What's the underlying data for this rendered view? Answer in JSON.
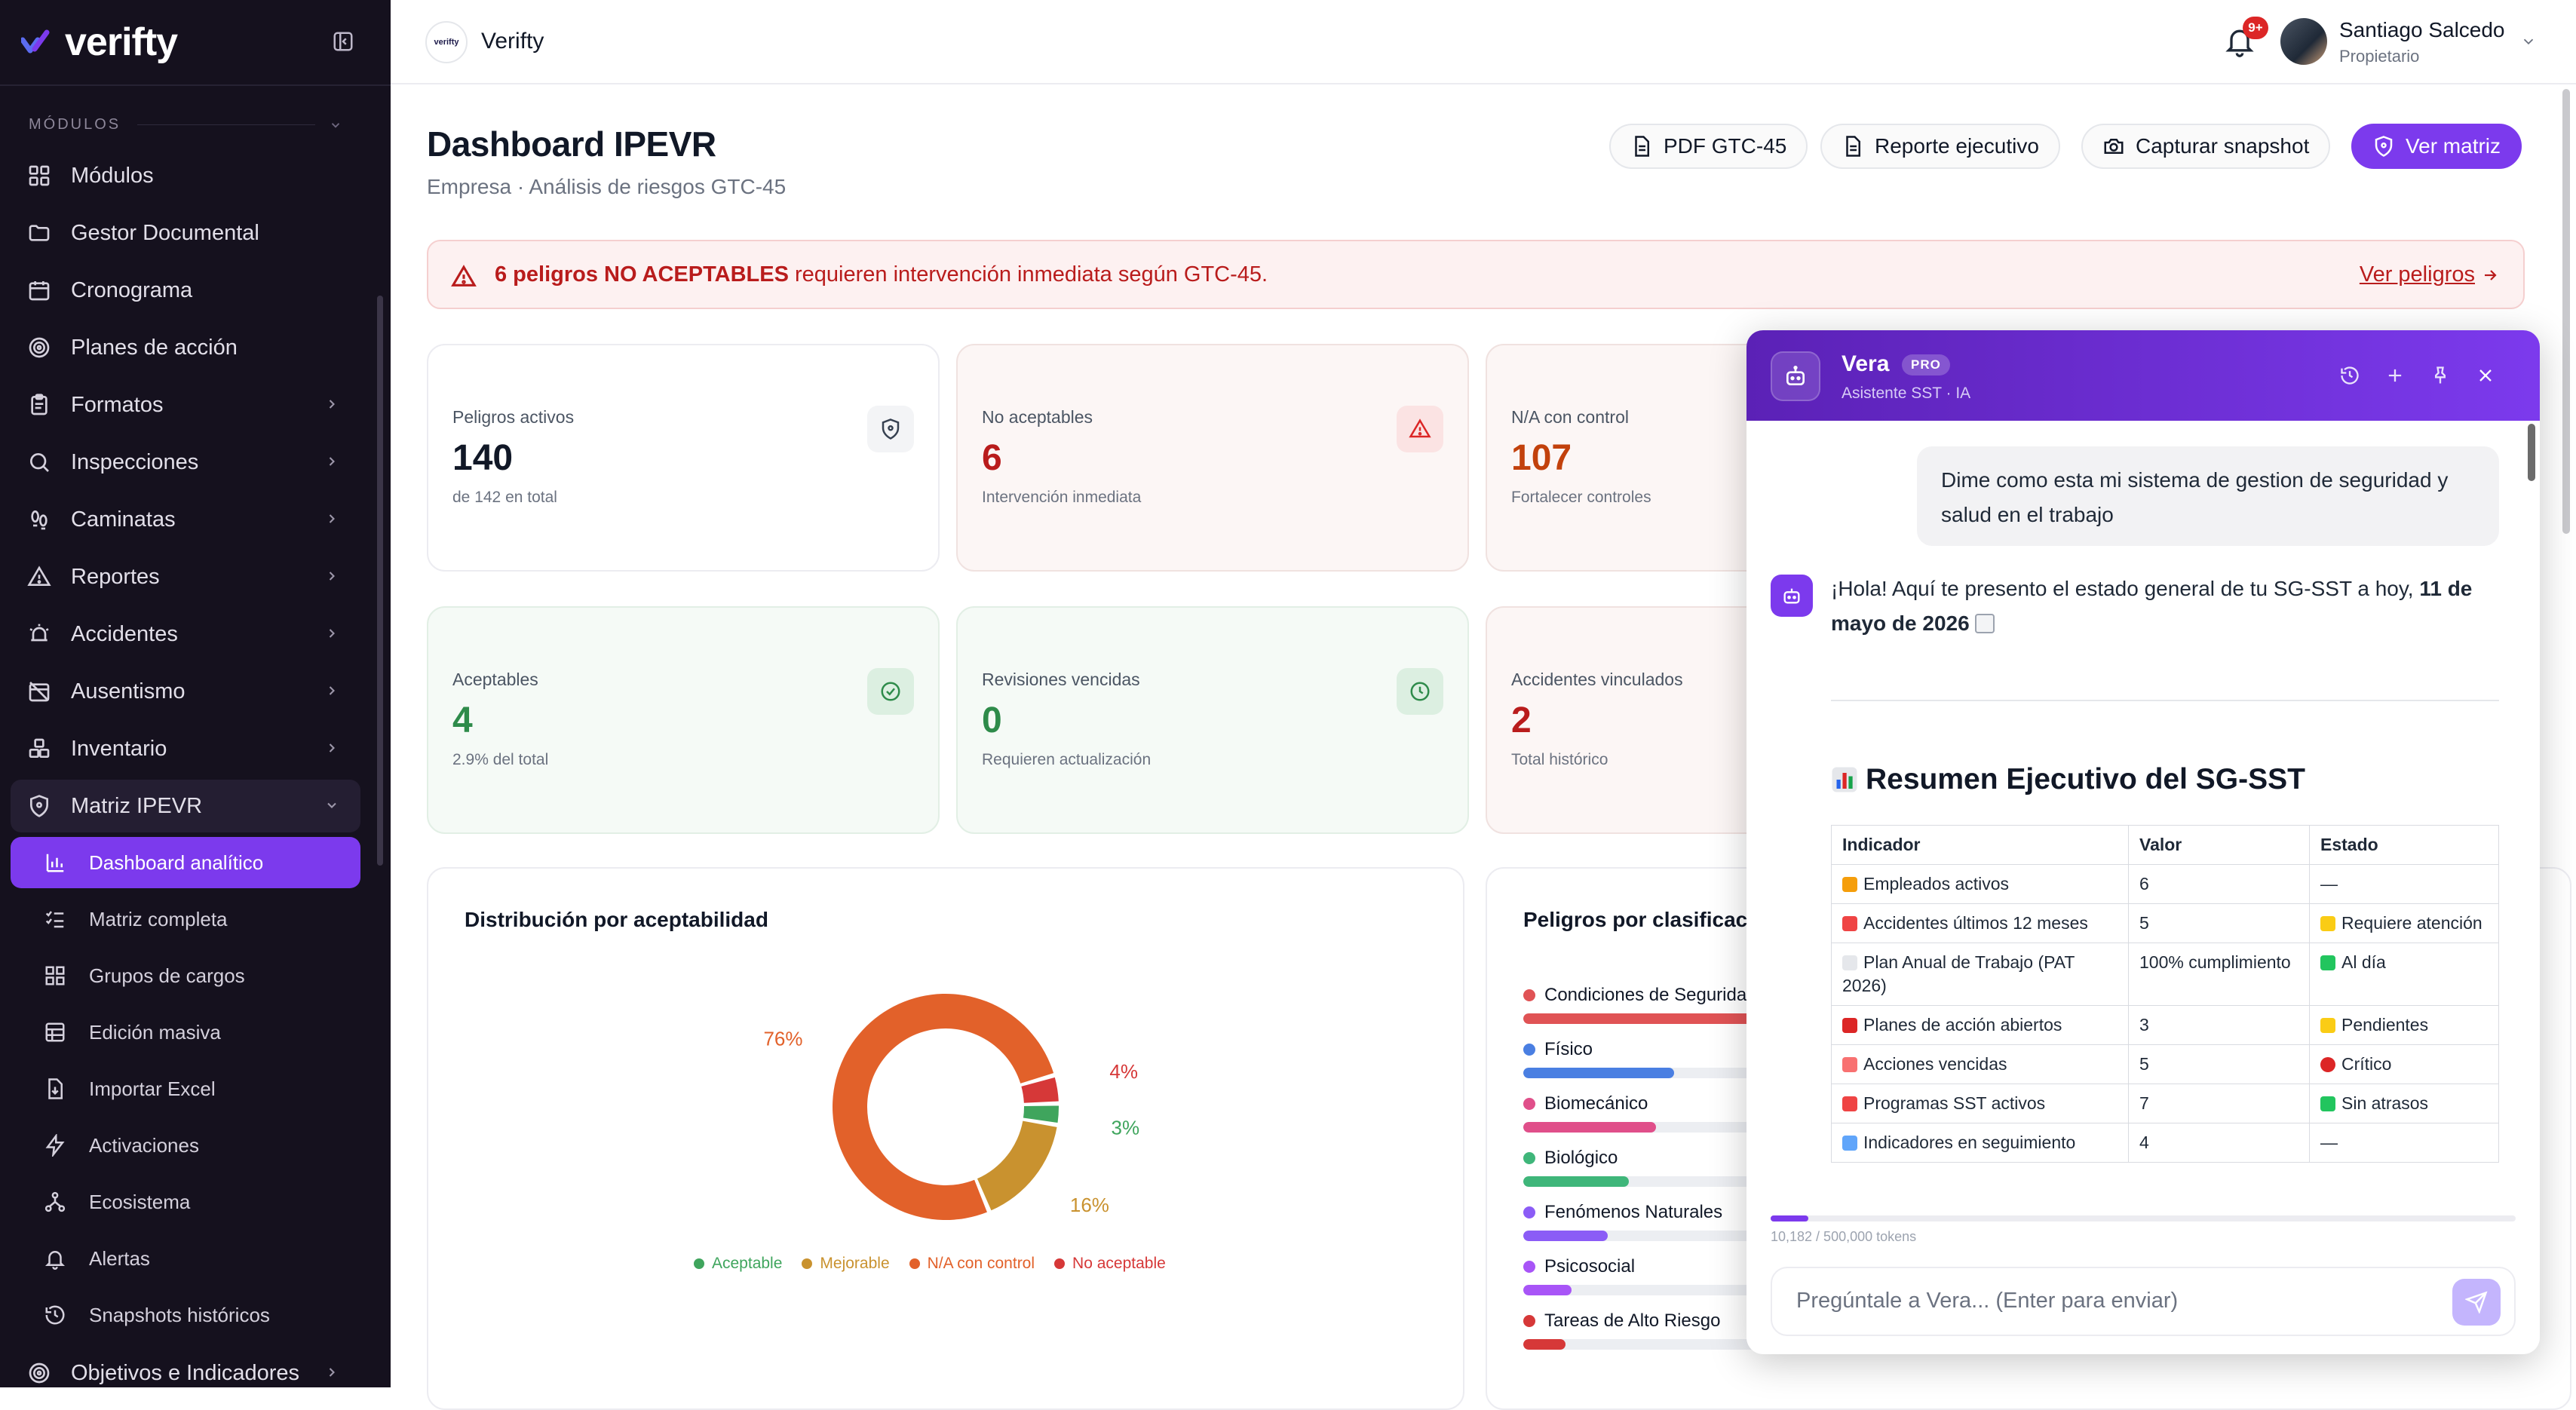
{
  "app": {
    "brand": "verifty"
  },
  "sidebar": {
    "section_label": "MÓDULOS",
    "items": [
      {
        "label": "Módulos",
        "icon": "grid-icon"
      },
      {
        "label": "Gestor Documental",
        "icon": "folder-icon"
      },
      {
        "label": "Cronograma",
        "icon": "calendar-icon"
      },
      {
        "label": "Planes de acción",
        "icon": "target-icon"
      },
      {
        "label": "Formatos",
        "icon": "clipboard-icon"
      },
      {
        "label": "Inspecciones",
        "icon": "search-icon"
      },
      {
        "label": "Caminatas",
        "icon": "footprints-icon"
      },
      {
        "label": "Reportes",
        "icon": "warning-icon"
      },
      {
        "label": "Accidentes",
        "icon": "siren-icon"
      },
      {
        "label": "Ausentismo",
        "icon": "calendar-off-icon"
      },
      {
        "label": "Inventario",
        "icon": "boxes-icon"
      },
      {
        "label": "Matriz IPEVR",
        "icon": "shield-icon"
      }
    ],
    "sub_items": [
      {
        "label": "Dashboard analítico",
        "icon": "bar-chart-icon"
      },
      {
        "label": "Matriz completa",
        "icon": "list-checks-icon"
      },
      {
        "label": "Grupos de cargos",
        "icon": "layout-grid-icon"
      },
      {
        "label": "Edición masiva",
        "icon": "table-icon"
      },
      {
        "label": "Importar Excel",
        "icon": "file-import-icon"
      },
      {
        "label": "Activaciones",
        "icon": "zap-icon"
      },
      {
        "label": "Ecosistema",
        "icon": "network-icon"
      },
      {
        "label": "Alertas",
        "icon": "bell-icon"
      },
      {
        "label": "Snapshots históricos",
        "icon": "history-icon"
      }
    ],
    "bottom_item": {
      "label": "Objetivos e Indicadores",
      "icon": "target-icon"
    }
  },
  "topbar": {
    "org_logo_text": "verifty",
    "org_name": "Verifty",
    "notification_badge": "9+",
    "user_name": "Santiago Salcedo",
    "user_role": "Propietario"
  },
  "page": {
    "title": "Dashboard IPEVR",
    "subtitle": "Empresa · Análisis de riesgos GTC-45",
    "buttons": {
      "pdf": "PDF GTC-45",
      "report": "Reporte ejecutivo",
      "snapshot": "Capturar snapshot",
      "matrix": "Ver matriz"
    }
  },
  "alert": {
    "bold": "6 peligros NO ACEPTABLES",
    "text": " requieren intervención inmediata según GTC-45.",
    "link": "Ver peligros"
  },
  "stats": [
    {
      "label": "Peligros activos",
      "value": "140",
      "sub": "de 142 en total"
    },
    {
      "label": "No aceptables",
      "value": "6",
      "sub": "Intervención inmediata"
    },
    {
      "label": "N/A con control",
      "value": "107",
      "sub": "Fortalecer controles"
    },
    {
      "label": "Aceptables",
      "value": "4",
      "sub": "2.9% del total"
    },
    {
      "label": "Revisiones vencidas",
      "value": "0",
      "sub": "Requieren actualización"
    },
    {
      "label": "Accidentes vinculados",
      "value": "2",
      "sub": "Total histórico"
    }
  ],
  "panels": {
    "distribution_title": "Distribución por aceptabilidad",
    "classification_title": "Peligros por clasificación"
  },
  "chart_data": [
    {
      "type": "pie",
      "title": "Distribución por aceptabilidad",
      "categories": [
        "Aceptable",
        "Mejorable",
        "N/A con control",
        "No aceptable"
      ],
      "values": [
        3,
        16,
        76,
        4
      ],
      "value_labels": [
        "3%",
        "16%",
        "76%",
        "4%"
      ],
      "colors": [
        "#3fa55d",
        "#c9922f",
        "#e2612a",
        "#d63838"
      ],
      "legend": "bottom"
    },
    {
      "type": "bar",
      "title": "Peligros por clasificación",
      "categories": [
        "Condiciones de Seguridad",
        "Físico",
        "Biomecánico",
        "Biológico",
        "Fenómenos Naturales",
        "Psicosocial",
        "Tareas de Alto Riesgo"
      ],
      "values": [
        1.0,
        0.5,
        0.44,
        0.35,
        0.28,
        0.16,
        0.14
      ],
      "colors": [
        "#e05355",
        "#4a7fe2",
        "#e04f8a",
        "#3fb67a",
        "#8b5cf6",
        "#a855f7",
        "#d63838"
      ]
    }
  ],
  "chat": {
    "name": "Vera",
    "badge": "PRO",
    "subtitle": "Asistente SST · IA",
    "user_message": "Dime como esta mi sistema de gestion de seguridad y salud en el trabajo",
    "bot_intro": "¡Hola! Aquí te presento el estado general de tu SG-SST a hoy, ",
    "bot_intro_bold": "11 de mayo de 2026",
    "heading": "Resumen Ejecutivo del SG-SST",
    "table": {
      "headers": [
        "Indicador",
        "Valor",
        "Estado"
      ],
      "rows": [
        {
          "emoji": "people",
          "indicator": "Empleados activos",
          "value": "6",
          "status_emoji": "",
          "status": "—"
        },
        {
          "emoji": "siren",
          "indicator": "Accidentes últimos 12 meses",
          "value": "5",
          "status_emoji": "warn",
          "status": "Requiere atención"
        },
        {
          "emoji": "memo",
          "indicator": "Plan Anual de Trabajo (PAT 2026)",
          "value": "100% cumplimiento",
          "status_emoji": "check",
          "status": "Al día"
        },
        {
          "emoji": "target",
          "indicator": "Planes de acción abiertos",
          "value": "3",
          "status_emoji": "warn",
          "status": "Pendientes"
        },
        {
          "emoji": "clock",
          "indicator": "Acciones vencidas",
          "value": "5",
          "status_emoji": "red",
          "status": "Crítico"
        },
        {
          "emoji": "pin",
          "indicator": "Programas SST activos",
          "value": "7",
          "status_emoji": "check",
          "status": "Sin atrasos"
        },
        {
          "emoji": "chart",
          "indicator": "Indicadores en seguimiento",
          "value": "4",
          "status_emoji": "",
          "status": "—"
        }
      ]
    },
    "tokens_text": "10,182 / 500,000 tokens",
    "tokens_fraction": 0.0204,
    "input_placeholder": "Pregúntale a Vera... (Enter para enviar)"
  },
  "colors": {
    "accent": "#7c3aed",
    "sidebar_bg": "#15111e",
    "danger": "#b91c1c",
    "success": "#2e8b4a"
  }
}
